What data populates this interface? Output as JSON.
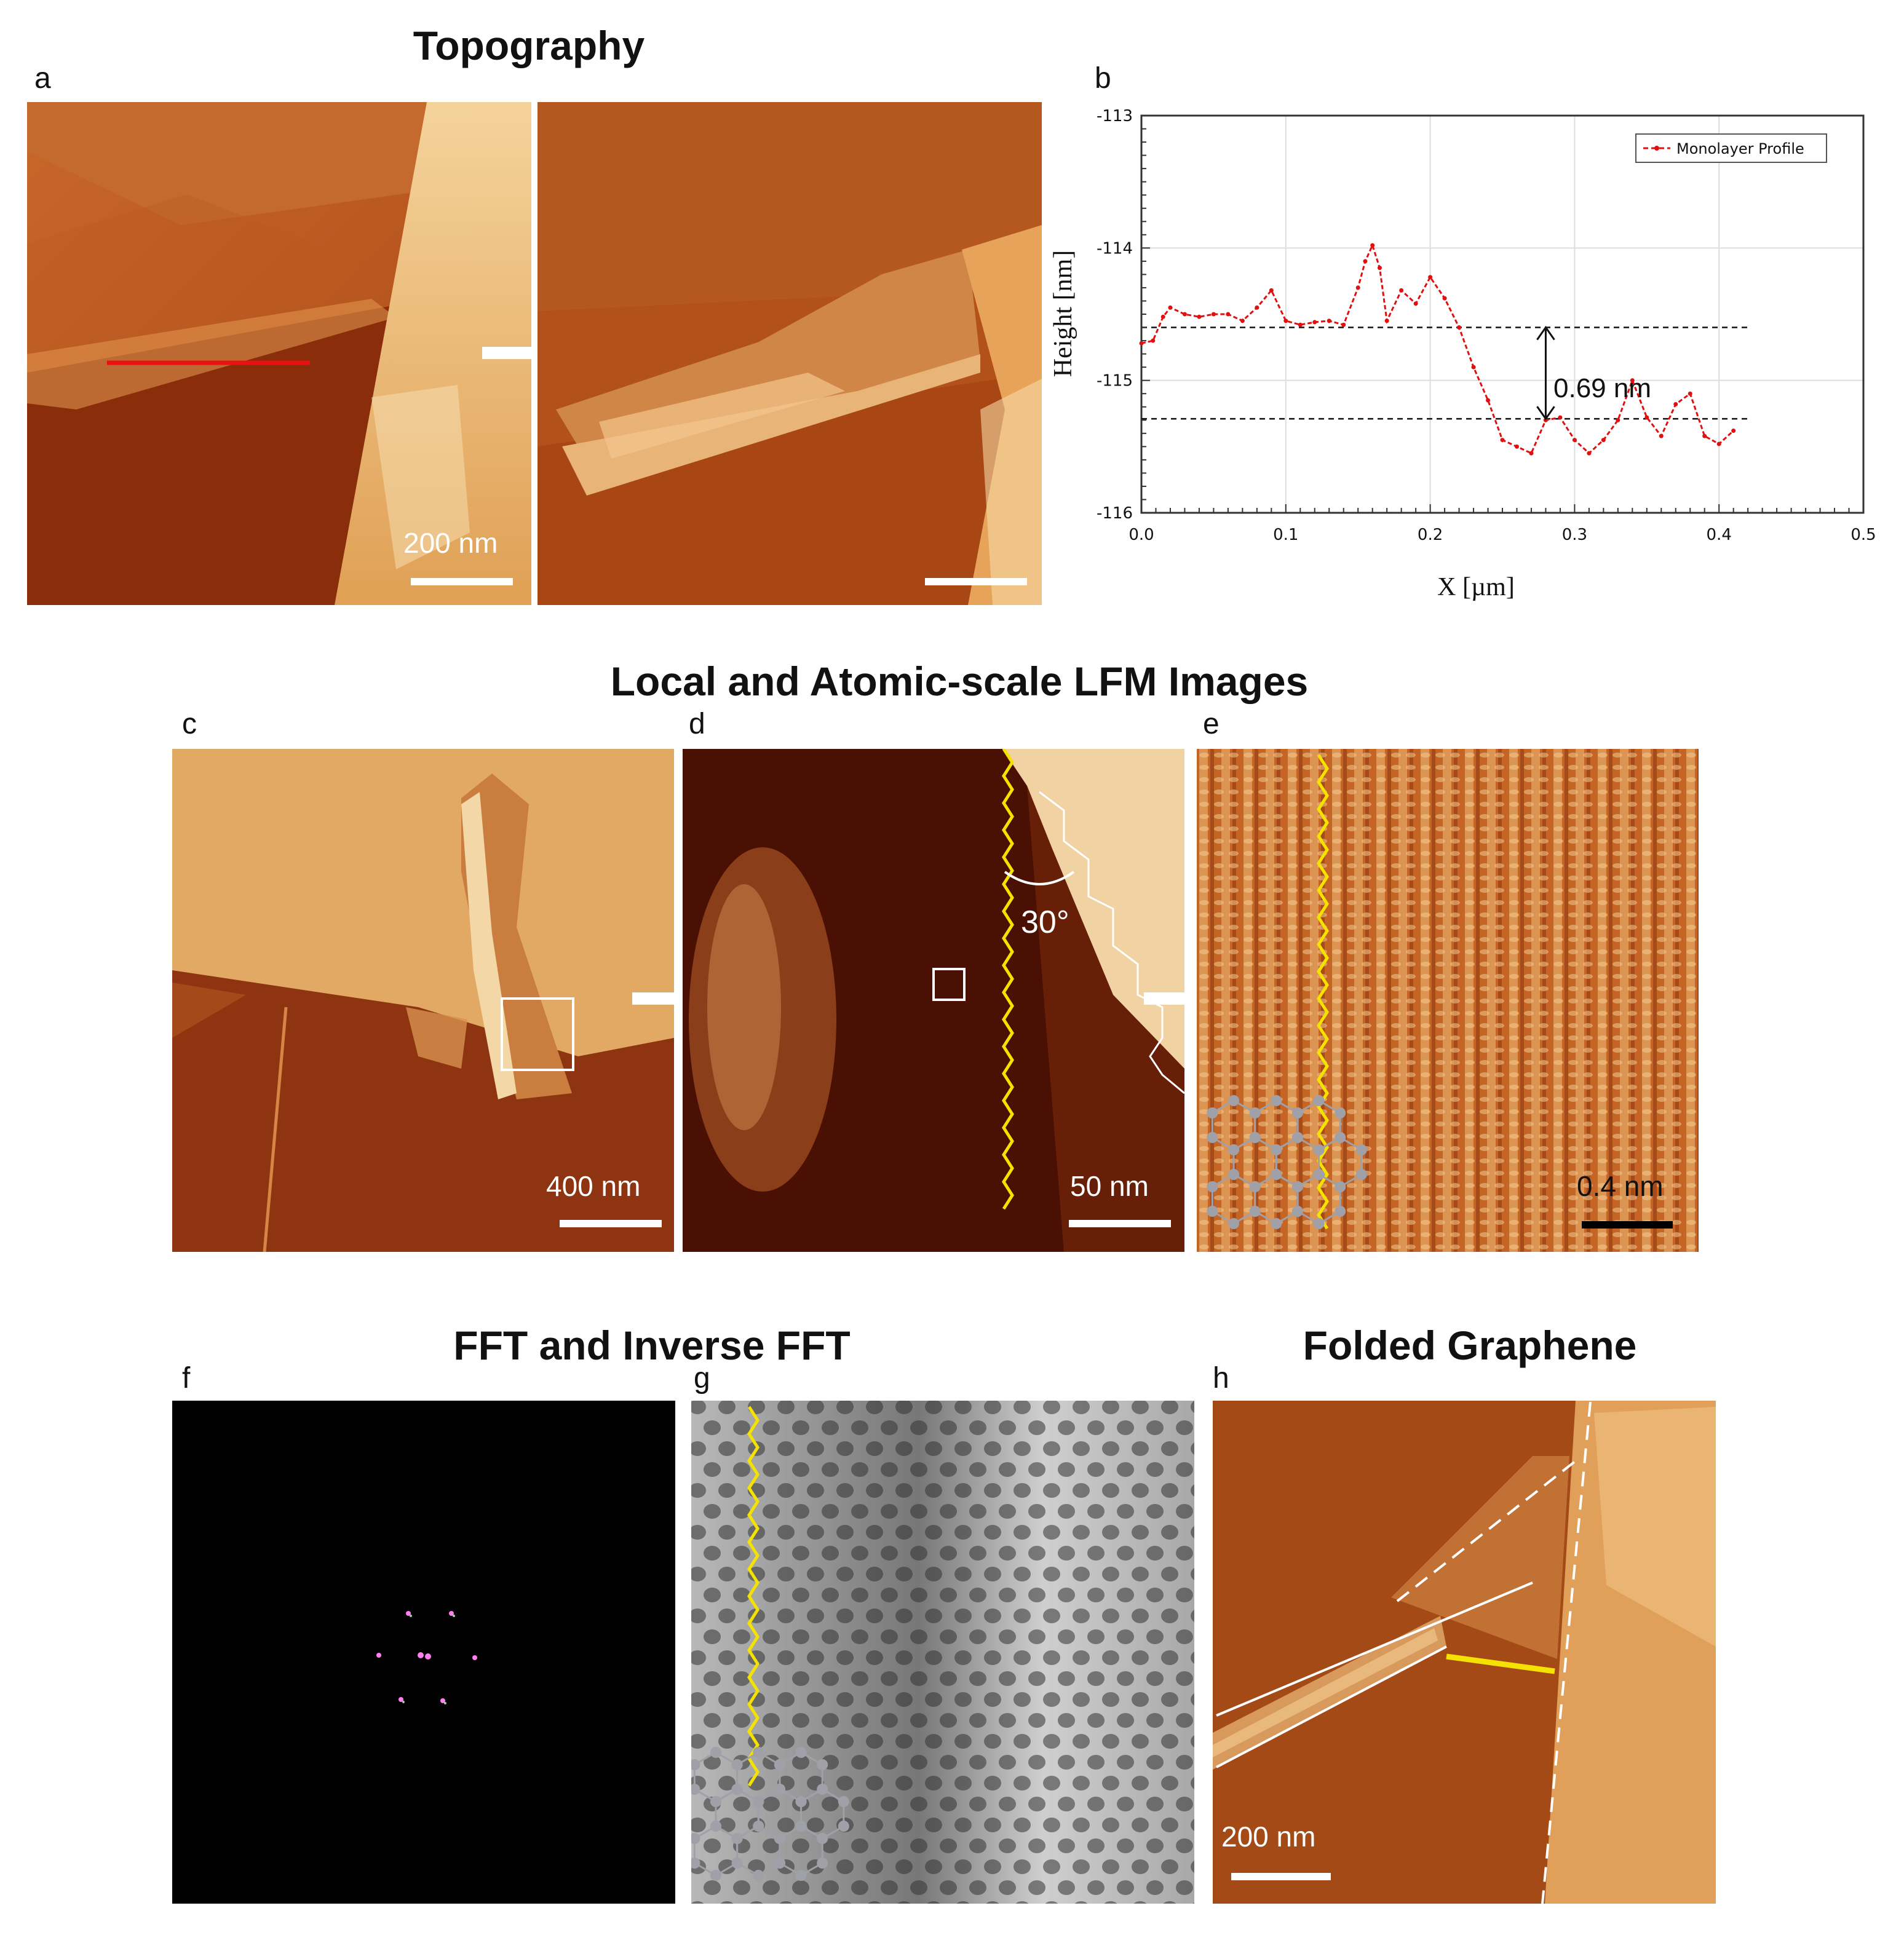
{
  "titles": {
    "topography": "Topography",
    "lfm": "Local and Atomic-scale LFM Images",
    "fft": "FFT and Inverse FFT",
    "folded": "Folded Graphene"
  },
  "panels": {
    "a": {
      "letter": "a",
      "scale_label": "200 nm"
    },
    "b": {
      "letter": "b"
    },
    "c": {
      "letter": "c",
      "scale_label": "400 nm"
    },
    "d": {
      "letter": "d",
      "scale_label": "50 nm",
      "angle_label": "30°"
    },
    "e": {
      "letter": "e",
      "scale_label": "0.4 nm"
    },
    "f": {
      "letter": "f"
    },
    "g": {
      "letter": "g"
    },
    "h": {
      "letter": "h",
      "scale_label": "200 nm"
    }
  },
  "colors": {
    "afm_dark": "#6a1e05",
    "afm_mid": "#b24b16",
    "afm_light": "#e8a55a",
    "afm_bright": "#f7d6a0",
    "profile_red": "#e01010",
    "zigzag_yellow": "#f5e200",
    "lattice_gray": "#a0a0a8"
  },
  "chart_data": {
    "type": "line",
    "xlabel": "X [µm]",
    "ylabel": "Height [nm]",
    "xlim": [
      0.0,
      0.5
    ],
    "ylim": [
      -116,
      -113
    ],
    "xticks": [
      "0.0",
      "0.1",
      "0.2",
      "0.3",
      "0.4",
      "0.5"
    ],
    "yticks": [
      "-113",
      "-114",
      "-115",
      "-116"
    ],
    "grid": true,
    "legend_position": "top-right",
    "annotation": "0.69 nm",
    "reference_levels": [
      -114.6,
      -115.29
    ],
    "series": [
      {
        "name": "Monolayer Profile",
        "x": [
          0.0,
          0.008,
          0.015,
          0.02,
          0.03,
          0.04,
          0.05,
          0.06,
          0.07,
          0.08,
          0.09,
          0.1,
          0.11,
          0.12,
          0.13,
          0.14,
          0.15,
          0.155,
          0.16,
          0.165,
          0.17,
          0.18,
          0.19,
          0.2,
          0.21,
          0.22,
          0.23,
          0.24,
          0.25,
          0.26,
          0.27,
          0.28,
          0.29,
          0.3,
          0.31,
          0.32,
          0.33,
          0.34,
          0.35,
          0.36,
          0.37,
          0.38,
          0.39,
          0.4,
          0.41
        ],
        "y": [
          -114.72,
          -114.7,
          -114.52,
          -114.45,
          -114.5,
          -114.52,
          -114.5,
          -114.5,
          -114.55,
          -114.45,
          -114.32,
          -114.55,
          -114.58,
          -114.56,
          -114.55,
          -114.58,
          -114.3,
          -114.1,
          -113.98,
          -114.15,
          -114.55,
          -114.32,
          -114.42,
          -114.22,
          -114.38,
          -114.6,
          -114.9,
          -115.15,
          -115.45,
          -115.5,
          -115.55,
          -115.3,
          -115.28,
          -115.45,
          -115.55,
          -115.45,
          -115.3,
          -115.0,
          -115.28,
          -115.42,
          -115.18,
          -115.1,
          -115.42,
          -115.48,
          -115.38
        ]
      }
    ]
  }
}
